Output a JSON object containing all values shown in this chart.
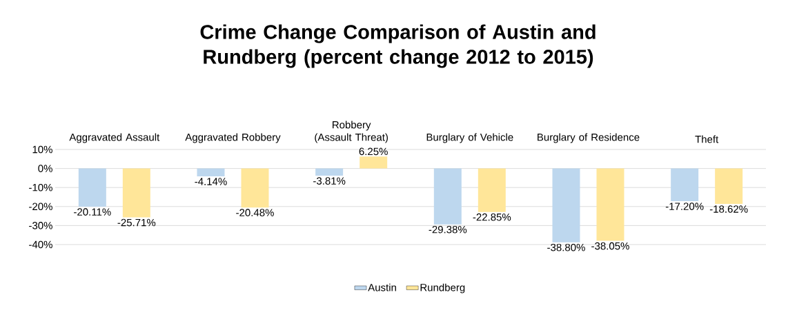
{
  "chart_data": {
    "type": "bar",
    "title": "Crime Change Comparison of Austin and Rundberg (percent change 2012 to 2015)",
    "categories": [
      "Aggravated Assault",
      "Aggravated Robbery",
      "Robbery (Assault Threat)",
      "Burglary of Vehicle",
      "Burglary of Residence",
      "Theft"
    ],
    "series": [
      {
        "name": "Austin",
        "color": "#bdd7ee",
        "values": [
          -20.11,
          -4.14,
          -3.81,
          -29.38,
          -38.8,
          -17.2
        ],
        "value_labels": [
          "-20.11%",
          "-4.14%",
          "-3.81%",
          "-29.38%",
          "-38.80%",
          "-17.20%"
        ]
      },
      {
        "name": "Rundberg",
        "color": "#ffe699",
        "values": [
          -25.71,
          -20.48,
          6.25,
          -22.85,
          -38.05,
          -18.62
        ],
        "value_labels": [
          "-25.71%",
          "-20.48%",
          "6.25%",
          "-22.85%",
          "-38.05%",
          "-18.62%"
        ]
      }
    ],
    "ylim": [
      -40,
      10
    ],
    "yticks": [
      {
        "value": 10,
        "label": "10%"
      },
      {
        "value": 0,
        "label": "0%"
      },
      {
        "value": -10,
        "label": "-10%"
      },
      {
        "value": -20,
        "label": "-20%"
      },
      {
        "value": -30,
        "label": "-30%"
      },
      {
        "value": -40,
        "label": "-40%"
      }
    ],
    "grid": "y",
    "legend": "bottom"
  }
}
